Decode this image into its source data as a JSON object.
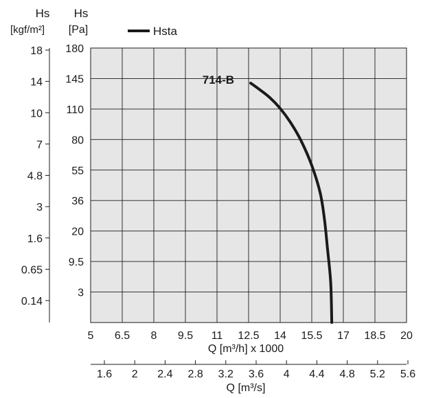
{
  "chart_data": {
    "type": "line",
    "title": "",
    "legend": {
      "label": "Hsta",
      "placement": "top-left"
    },
    "left_axis_outer": {
      "label_line1": "Hs",
      "label_line2": "[kgf/m²]",
      "ticks": [
        "18",
        "14",
        "10",
        "7",
        "4.8",
        "3",
        "1.6",
        "0.65",
        "0.14"
      ]
    },
    "left_axis_inner": {
      "label_line1": "Hs",
      "label_line2": "[Pa]",
      "ticks": [
        "180",
        "145",
        "110",
        "80",
        "55",
        "36",
        "20",
        "9.5",
        "3"
      ]
    },
    "x_axis_top": {
      "label": "Q [m³/h] x 1000",
      "ticks": [
        "5",
        "6.5",
        "8",
        "9.5",
        "11",
        "12.5",
        "14",
        "15.5",
        "17",
        "18.5",
        "20"
      ]
    },
    "x_axis_bottom": {
      "label": "Q [m³/s]",
      "ticks": [
        "1.6",
        "2",
        "2.4",
        "2.8",
        "3.2",
        "3.6",
        "4",
        "4.4",
        "4.8",
        "5.2",
        "5.6"
      ]
    },
    "grid": true,
    "series": [
      {
        "name": "714-B",
        "color": "#1a1a1a",
        "points": [
          {
            "q": 12.6,
            "grid_pos": 1.15
          },
          {
            "q": 13.0,
            "grid_pos": 1.35
          },
          {
            "q": 13.5,
            "grid_pos": 1.62
          },
          {
            "q": 14.0,
            "grid_pos": 1.98
          },
          {
            "q": 14.5,
            "grid_pos": 2.45
          },
          {
            "q": 15.0,
            "grid_pos": 3.05
          },
          {
            "q": 15.5,
            "grid_pos": 3.85
          },
          {
            "q": 15.9,
            "grid_pos": 4.75
          },
          {
            "q": 16.1,
            "grid_pos": 5.6
          },
          {
            "q": 16.25,
            "grid_pos": 6.6
          },
          {
            "q": 16.4,
            "grid_pos": 7.7
          },
          {
            "q": 16.45,
            "grid_pos": 9.0
          }
        ]
      }
    ]
  }
}
